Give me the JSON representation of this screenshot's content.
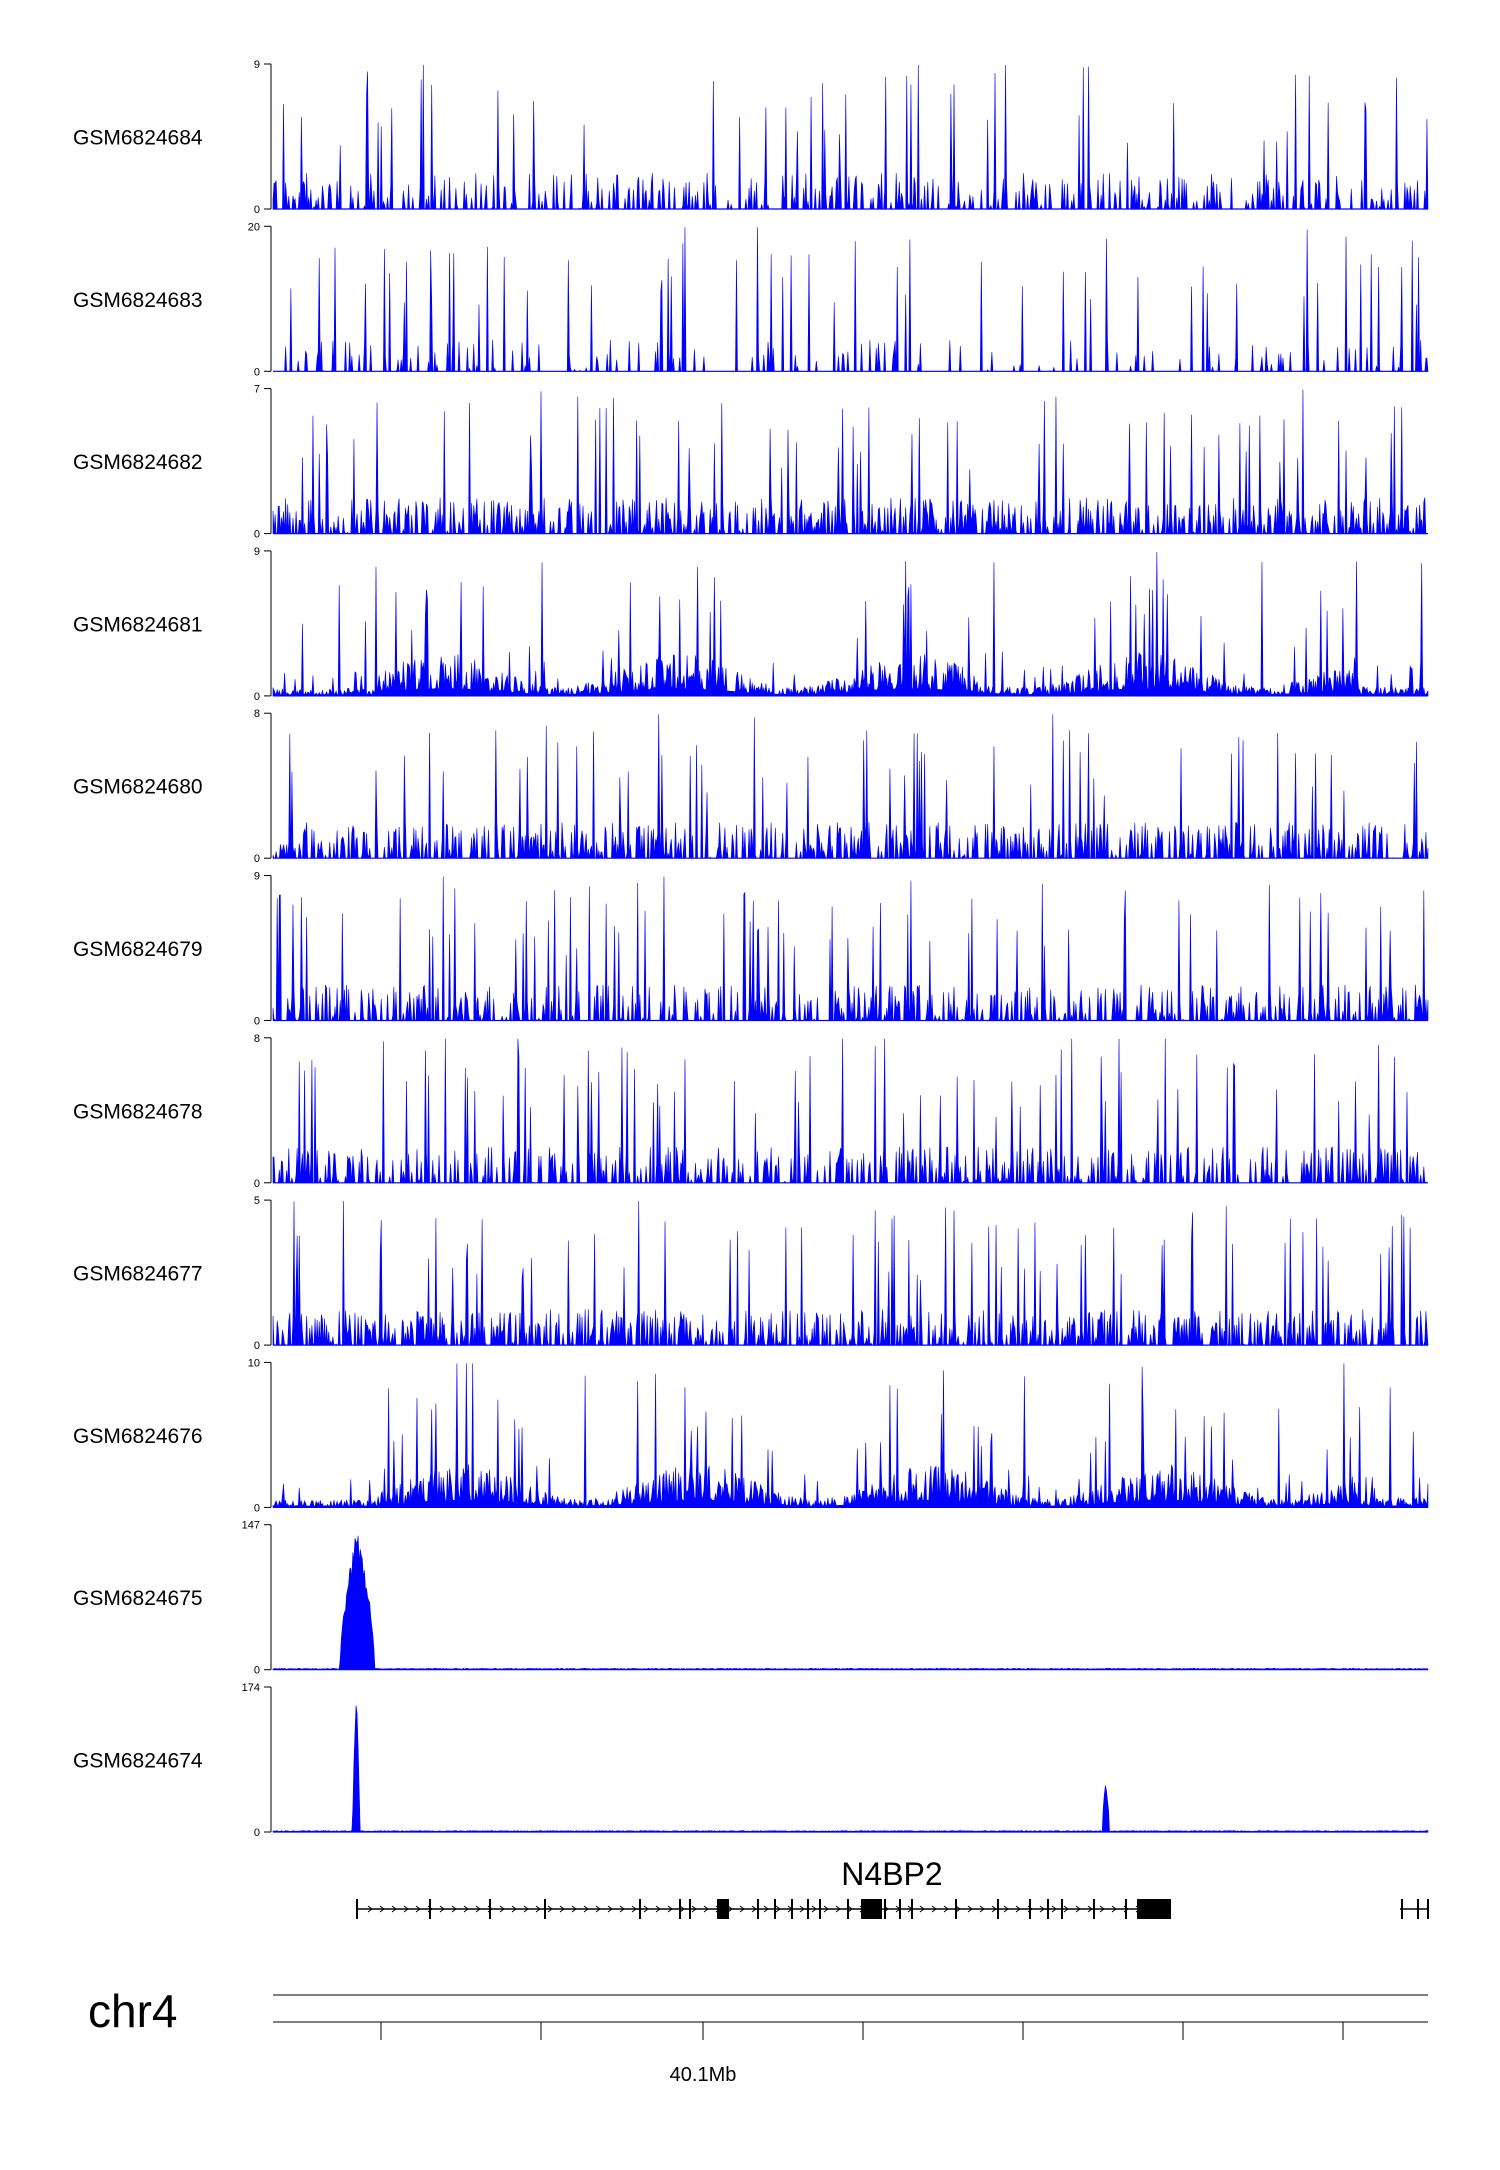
{
  "chart_data": {
    "type": "area",
    "plot_type": "genome-browser-coverage-tracks",
    "chromosome": "chr4",
    "x_axis": {
      "label": "40.1Mb",
      "tick_count": 7
    },
    "gene": {
      "name": "N4BP2"
    },
    "colors": {
      "signal": "#0000ff",
      "axis": "#000000",
      "gene": "#000000",
      "background": "#ffffff"
    },
    "tracks": [
      {
        "name": "GSM6824684",
        "ymax": "9",
        "ymin": "0",
        "profile": "sparse",
        "seed": 11,
        "density": 0.35
      },
      {
        "name": "GSM6824683",
        "ymax": "20",
        "ymin": "0",
        "profile": "very-sparse",
        "seed": 23,
        "density": 0.12
      },
      {
        "name": "GSM6824682",
        "ymax": "7",
        "ymin": "0",
        "profile": "dense",
        "seed": 37,
        "density": 0.55
      },
      {
        "name": "GSM6824681",
        "ymax": "9",
        "ymin": "0",
        "profile": "broad",
        "seed": 41,
        "density": 0.7
      },
      {
        "name": "GSM6824680",
        "ymax": "8",
        "ymin": "0",
        "profile": "dense",
        "seed": 53,
        "density": 0.45
      },
      {
        "name": "GSM6824679",
        "ymax": "9",
        "ymin": "0",
        "profile": "sparse",
        "seed": 67,
        "density": 0.4
      },
      {
        "name": "GSM6824678",
        "ymax": "8",
        "ymin": "0",
        "profile": "sparse",
        "seed": 71,
        "density": 0.4
      },
      {
        "name": "GSM6824677",
        "ymax": "5",
        "ymin": "0",
        "profile": "dense",
        "seed": 83,
        "density": 0.55
      },
      {
        "name": "GSM6824676",
        "ymax": "10",
        "ymin": "0",
        "profile": "broad",
        "seed": 97,
        "density": 0.7
      },
      {
        "name": "GSM6824675",
        "ymax": "147",
        "ymin": "0",
        "profile": "peak",
        "seed": 101,
        "peaks": [
          {
            "center": 0.073,
            "width": 0.015,
            "height": 1.0
          }
        ]
      },
      {
        "name": "GSM6824674",
        "ymax": "174",
        "ymin": "0",
        "profile": "peak",
        "seed": 113,
        "peaks": [
          {
            "center": 0.072,
            "width": 0.003,
            "height": 1.0
          },
          {
            "center": 0.721,
            "width": 0.003,
            "height": 0.41
          }
        ]
      }
    ]
  }
}
